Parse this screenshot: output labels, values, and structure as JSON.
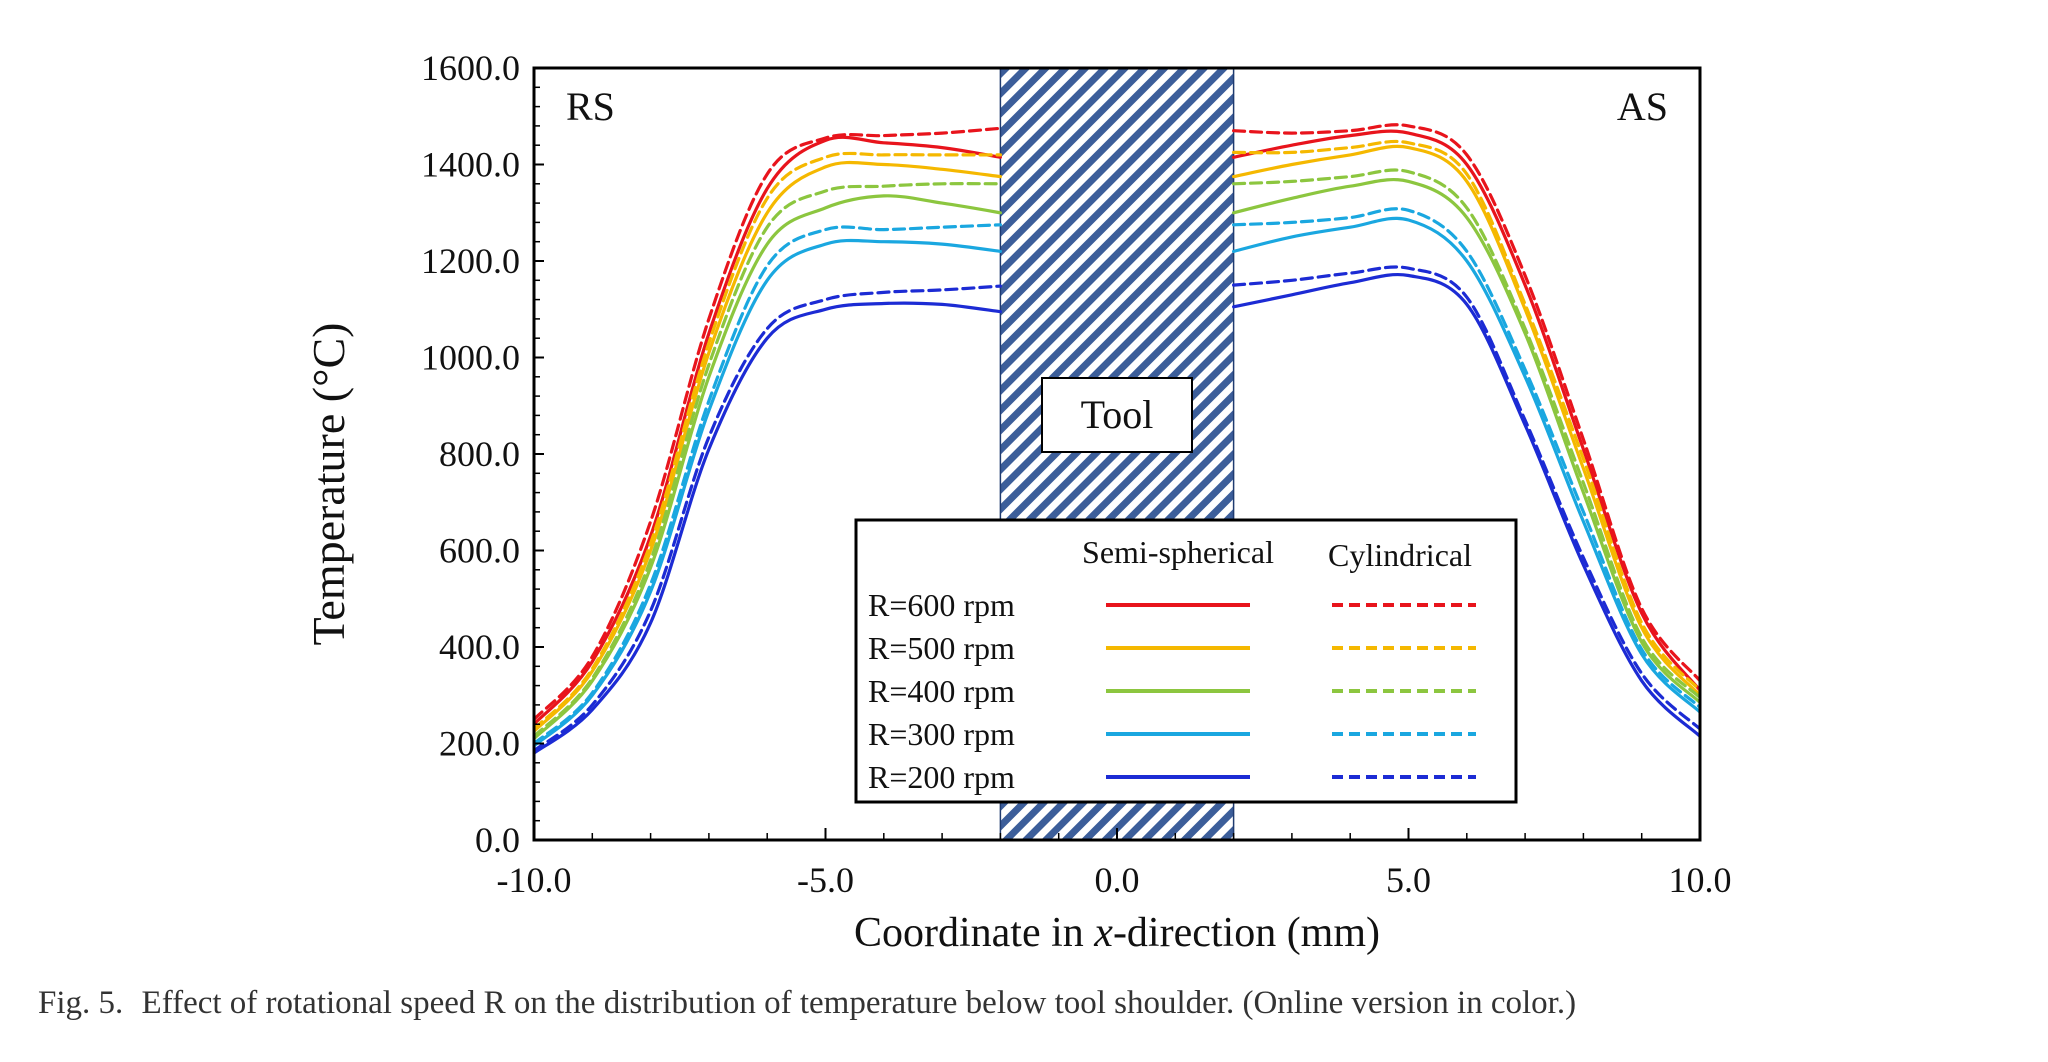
{
  "caption": {
    "label": "Fig. 5.",
    "text": "Effect of rotational speed R on the distribution of temperature below tool shoulder. (Online version in color.)"
  },
  "chart_data": {
    "type": "line",
    "title": "",
    "xlabel_prefix": "Coordinate in ",
    "xlabel_var": "x",
    "xlabel_suffix": "-direction (mm)",
    "ylabel": "Temperature (°C)",
    "xlim": [
      -10,
      10
    ],
    "ylim": [
      0,
      1600
    ],
    "xticks": [
      -10,
      -5,
      0,
      5,
      10
    ],
    "xtick_labels": [
      "-10.0",
      "-5.0",
      "0.0",
      "5.0",
      "10.0"
    ],
    "yticks": [
      0,
      200,
      400,
      600,
      800,
      1000,
      1200,
      1400,
      1600
    ],
    "ytick_labels": [
      "0.0",
      "200.0",
      "400.0",
      "600.0",
      "800.0",
      "1000.0",
      "1200.0",
      "1400.0",
      "1600.0"
    ],
    "tool_region": {
      "x_from": -2,
      "x_to": 2,
      "label": "Tool"
    },
    "corner_labels": {
      "left": "RS",
      "right": "AS"
    },
    "legend": {
      "header_solid": "Semi-spherical",
      "header_dashed": "Cylindrical"
    },
    "series": [
      {
        "name": "R=600 rpm",
        "color": "#e8141c",
        "semi": {
          "x": [
            -10,
            -9,
            -8,
            -7,
            -6,
            -5,
            -4,
            -3,
            -2
          ],
          "y": [
            240,
            370,
            630,
            1050,
            1350,
            1450,
            1445,
            1435,
            1415
          ]
        },
        "cyl": {
          "x": [
            -10,
            -9,
            -8,
            -7,
            -6,
            -5,
            -4,
            -3,
            -2
          ],
          "y": [
            250,
            380,
            660,
            1080,
            1380,
            1455,
            1460,
            1465,
            1475
          ]
        },
        "semi_r": {
          "x": [
            2,
            3,
            4,
            5,
            6,
            7,
            8,
            9,
            10
          ],
          "y": [
            1415,
            1440,
            1460,
            1465,
            1400,
            1150,
            810,
            470,
            310
          ]
        },
        "cyl_r": {
          "x": [
            2,
            3,
            4,
            5,
            6,
            7,
            8,
            9,
            10
          ],
          "y": [
            1470,
            1465,
            1470,
            1480,
            1420,
            1170,
            830,
            480,
            330
          ]
        }
      },
      {
        "name": "R=500 rpm",
        "color": "#f5b800",
        "semi": {
          "x": [
            -10,
            -9,
            -8,
            -7,
            -6,
            -5,
            -4,
            -3,
            -2
          ],
          "y": [
            225,
            350,
            600,
            1010,
            1300,
            1395,
            1400,
            1390,
            1375
          ]
        },
        "cyl": {
          "x": [
            -10,
            -9,
            -8,
            -7,
            -6,
            -5,
            -4,
            -3,
            -2
          ],
          "y": [
            230,
            355,
            615,
            1030,
            1330,
            1415,
            1420,
            1420,
            1420
          ]
        },
        "semi_r": {
          "x": [
            2,
            3,
            4,
            5,
            6,
            7,
            8,
            9,
            10
          ],
          "y": [
            1375,
            1400,
            1420,
            1435,
            1365,
            1100,
            770,
            440,
            300
          ]
        },
        "cyl_r": {
          "x": [
            2,
            3,
            4,
            5,
            6,
            7,
            8,
            9,
            10
          ],
          "y": [
            1425,
            1425,
            1435,
            1445,
            1380,
            1110,
            790,
            450,
            310
          ]
        }
      },
      {
        "name": "R=400 rpm",
        "color": "#8cc63f",
        "semi": {
          "x": [
            -10,
            -9,
            -8,
            -7,
            -6,
            -5,
            -4,
            -3,
            -2
          ],
          "y": [
            210,
            330,
            565,
            960,
            1235,
            1310,
            1335,
            1320,
            1300
          ]
        },
        "cyl": {
          "x": [
            -10,
            -9,
            -8,
            -7,
            -6,
            -5,
            -4,
            -3,
            -2
          ],
          "y": [
            215,
            335,
            580,
            985,
            1270,
            1345,
            1355,
            1360,
            1360
          ]
        },
        "semi_r": {
          "x": [
            2,
            3,
            4,
            5,
            6,
            7,
            8,
            9,
            10
          ],
          "y": [
            1300,
            1330,
            1355,
            1365,
            1290,
            1050,
            720,
            410,
            285
          ]
        },
        "cyl_r": {
          "x": [
            2,
            3,
            4,
            5,
            6,
            7,
            8,
            9,
            10
          ],
          "y": [
            1360,
            1365,
            1375,
            1385,
            1310,
            1060,
            740,
            420,
            295
          ]
        }
      },
      {
        "name": "R=300 rpm",
        "color": "#1aa7e0",
        "semi": {
          "x": [
            -10,
            -9,
            -8,
            -7,
            -6,
            -5,
            -4,
            -3,
            -2
          ],
          "y": [
            195,
            300,
            515,
            890,
            1160,
            1235,
            1240,
            1235,
            1220
          ]
        },
        "cyl": {
          "x": [
            -10,
            -9,
            -8,
            -7,
            -6,
            -5,
            -4,
            -3,
            -2
          ],
          "y": [
            200,
            305,
            530,
            910,
            1190,
            1265,
            1265,
            1270,
            1275
          ]
        },
        "semi_r": {
          "x": [
            2,
            3,
            4,
            5,
            6,
            7,
            8,
            9,
            10
          ],
          "y": [
            1220,
            1250,
            1270,
            1285,
            1200,
            960,
            660,
            385,
            265
          ]
        },
        "cyl_r": {
          "x": [
            2,
            3,
            4,
            5,
            6,
            7,
            8,
            9,
            10
          ],
          "y": [
            1275,
            1280,
            1290,
            1305,
            1220,
            975,
            680,
            395,
            275
          ]
        }
      },
      {
        "name": "R=200 rpm",
        "color": "#1c2bd4",
        "semi": {
          "x": [
            -10,
            -9,
            -8,
            -7,
            -6,
            -5,
            -4,
            -3,
            -2
          ],
          "y": [
            180,
            270,
            450,
            810,
            1040,
            1100,
            1112,
            1110,
            1095
          ]
        },
        "cyl": {
          "x": [
            -10,
            -9,
            -8,
            -7,
            -6,
            -5,
            -4,
            -3,
            -2
          ],
          "y": [
            185,
            280,
            475,
            835,
            1060,
            1120,
            1135,
            1140,
            1148
          ]
        },
        "semi_r": {
          "x": [
            2,
            3,
            4,
            5,
            6,
            7,
            8,
            9,
            10
          ],
          "y": [
            1105,
            1130,
            1155,
            1170,
            1110,
            860,
            570,
            330,
            215
          ]
        },
        "cyl_r": {
          "x": [
            2,
            3,
            4,
            5,
            6,
            7,
            8,
            9,
            10
          ],
          "y": [
            1150,
            1160,
            1175,
            1185,
            1125,
            870,
            585,
            345,
            230
          ]
        }
      }
    ]
  }
}
